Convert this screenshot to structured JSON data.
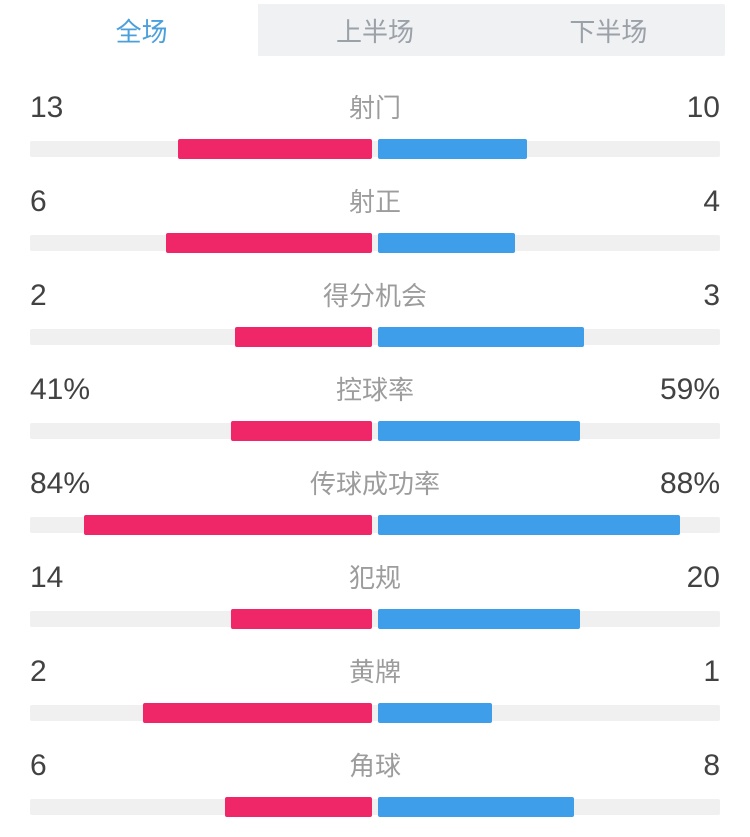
{
  "tabs": [
    {
      "id": "full",
      "label": "全场",
      "active": true
    },
    {
      "id": "first",
      "label": "上半场",
      "active": false
    },
    {
      "id": "second",
      "label": "下半场",
      "active": false
    }
  ],
  "colors": {
    "home_bar": "#ef2769",
    "away_bar": "#3f9eea",
    "bar_track": "#f0f0f0",
    "tab_active_text": "#4ba0dc",
    "tab_inactive_text": "#9aa1a9",
    "value_text": "#424242",
    "label_text": "#9c9c9c",
    "tabbar_background": "#f0f1f3"
  },
  "stats": [
    {
      "label": "射门",
      "type": "count",
      "home": {
        "text": "13",
        "value": 13
      },
      "away": {
        "text": "10",
        "value": 10
      }
    },
    {
      "label": "射正",
      "type": "count",
      "home": {
        "text": "6",
        "value": 6
      },
      "away": {
        "text": "4",
        "value": 4
      }
    },
    {
      "label": "得分机会",
      "type": "count",
      "home": {
        "text": "2",
        "value": 2
      },
      "away": {
        "text": "3",
        "value": 3
      }
    },
    {
      "label": "控球率",
      "type": "percent",
      "home": {
        "text": "41%",
        "value": 41
      },
      "away": {
        "text": "59%",
        "value": 59
      }
    },
    {
      "label": "传球成功率",
      "type": "percent",
      "home": {
        "text": "84%",
        "value": 84
      },
      "away": {
        "text": "88%",
        "value": 88
      }
    },
    {
      "label": "犯规",
      "type": "count",
      "home": {
        "text": "14",
        "value": 14
      },
      "away": {
        "text": "20",
        "value": 20
      }
    },
    {
      "label": "黄牌",
      "type": "count",
      "home": {
        "text": "2",
        "value": 2
      },
      "away": {
        "text": "1",
        "value": 1
      }
    },
    {
      "label": "角球",
      "type": "count",
      "home": {
        "text": "6",
        "value": 6
      },
      "away": {
        "text": "8",
        "value": 8
      }
    }
  ],
  "chart_data": {
    "type": "bar",
    "title": "全场",
    "categories": [
      "射门",
      "射正",
      "得分机会",
      "控球率",
      "传球成功率",
      "犯规",
      "黄牌",
      "角球"
    ],
    "series": [
      {
        "name": "home",
        "color": "#ef2769",
        "values": [
          13,
          6,
          2,
          41,
          84,
          14,
          2,
          6
        ]
      },
      {
        "name": "away",
        "color": "#3f9eea",
        "values": [
          10,
          4,
          3,
          59,
          88,
          20,
          1,
          8
        ]
      }
    ],
    "value_format": [
      "count",
      "count",
      "count",
      "percent",
      "percent",
      "count",
      "count",
      "count"
    ],
    "legend_position": "none",
    "grid": false,
    "orientation": "paired-horizontal-from-center"
  }
}
